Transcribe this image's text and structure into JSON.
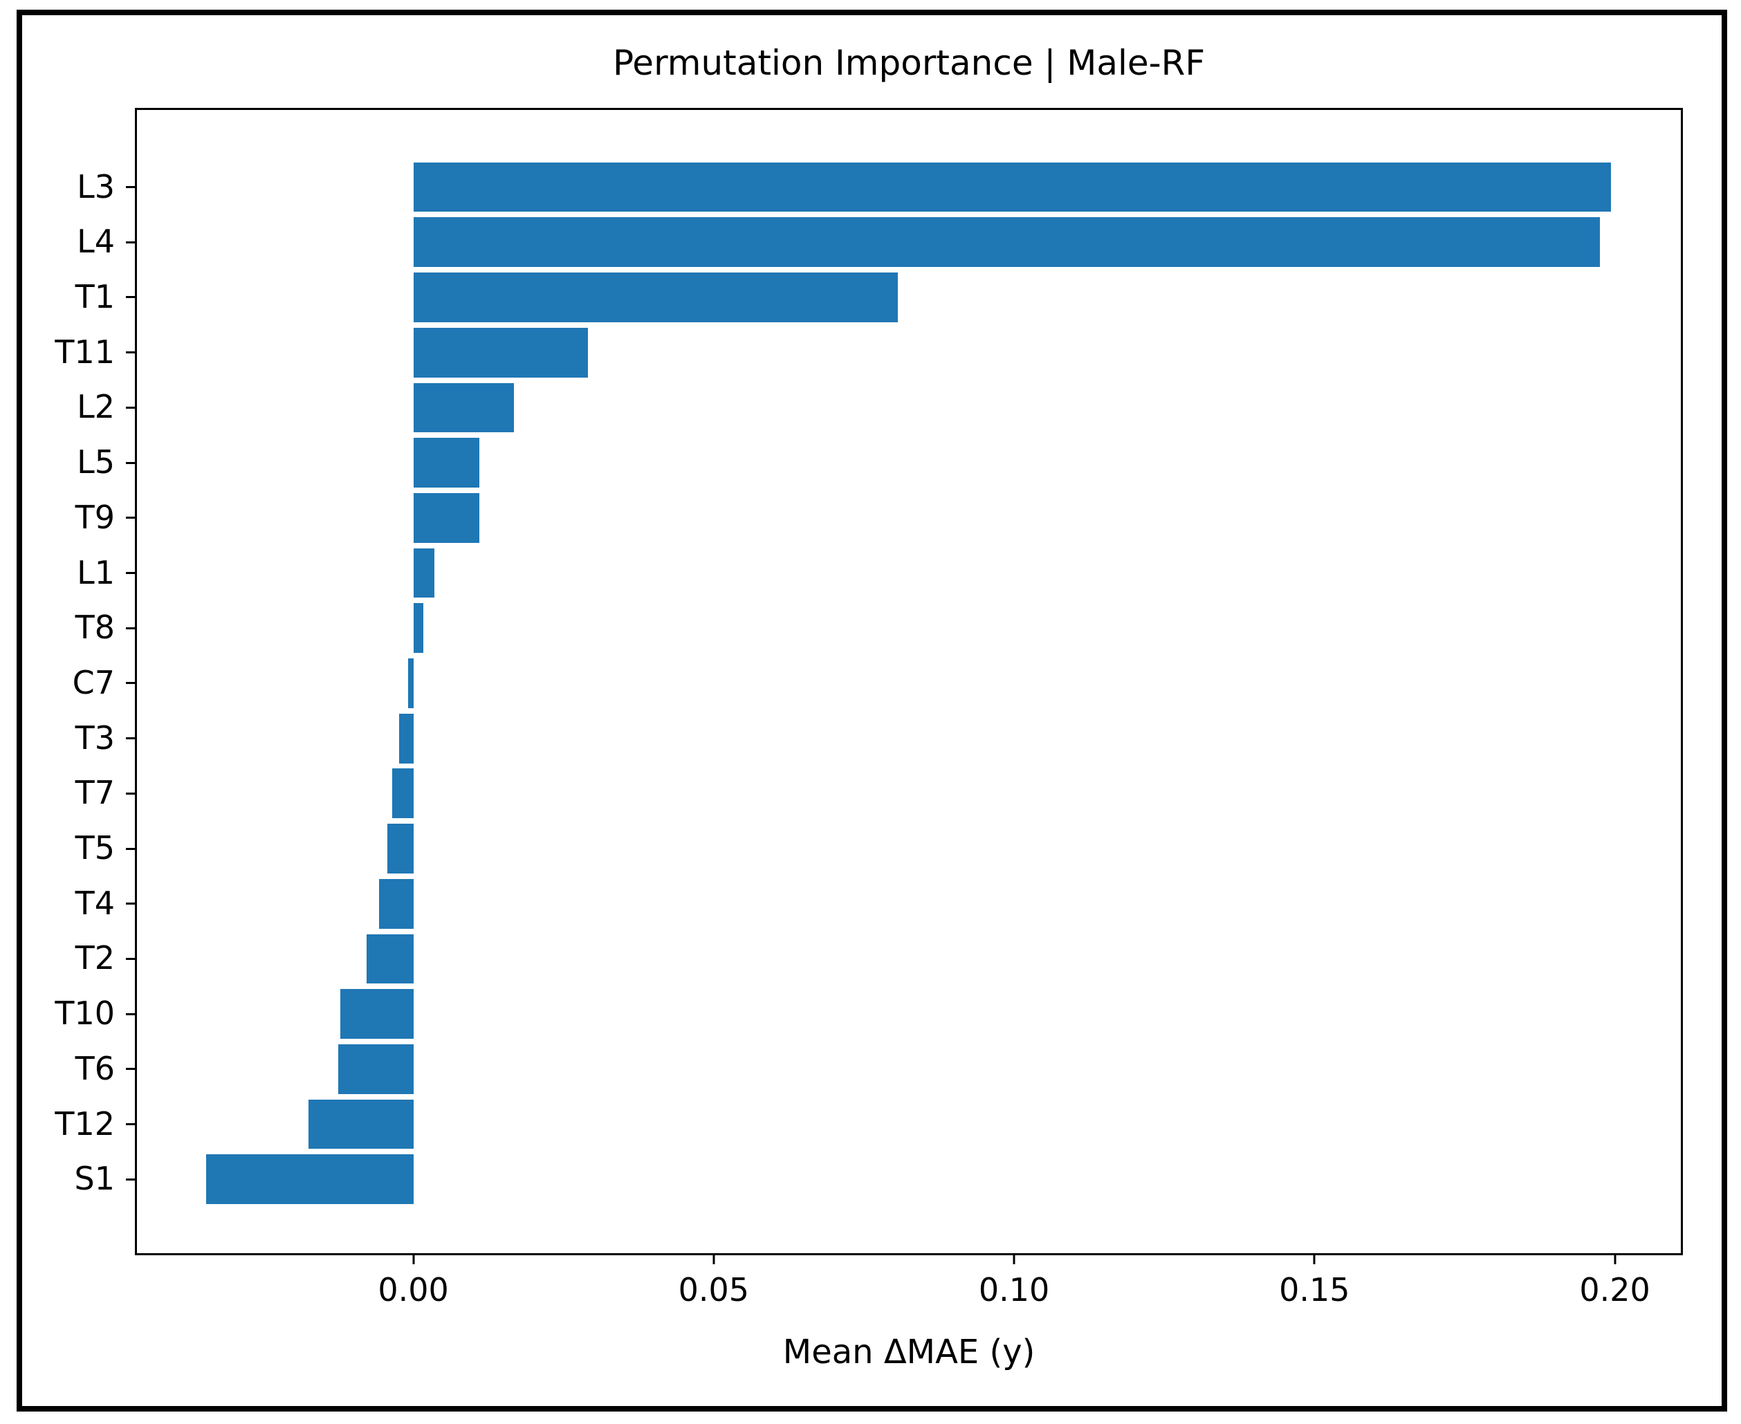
{
  "chart_data": {
    "type": "bar",
    "orientation": "horizontal",
    "title": "Permutation Importance | Male-RF",
    "xlabel": "Mean ΔMAE (y)",
    "ylabel": "",
    "categories": [
      "L3",
      "L4",
      "T1",
      "T11",
      "L2",
      "L5",
      "T9",
      "L1",
      "T8",
      "C7",
      "T3",
      "T7",
      "T5",
      "T4",
      "T2",
      "T10",
      "T6",
      "T12",
      "S1"
    ],
    "values": [
      0.1993,
      0.1975,
      0.0807,
      0.0291,
      0.0168,
      0.011,
      0.011,
      0.0035,
      0.0017,
      -0.0009,
      -0.0024,
      -0.0035,
      -0.0043,
      -0.0057,
      -0.0078,
      -0.0122,
      -0.0125,
      -0.0175,
      -0.0345
    ],
    "xlim": [
      -0.046,
      0.211
    ],
    "x_ticks": [
      "0.00",
      "0.05",
      "0.10",
      "0.15",
      "0.20"
    ],
    "x_tick_values": [
      0.0,
      0.05,
      0.1,
      0.15,
      0.2
    ],
    "bar_color": "#1f77b4",
    "axis_color": "#000000",
    "background_color": "#ffffff",
    "grid": false,
    "legend_position": "none"
  }
}
